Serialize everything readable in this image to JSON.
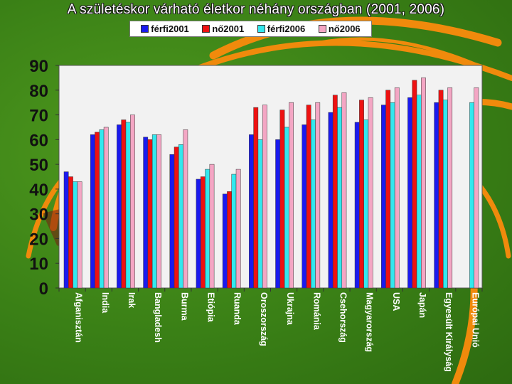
{
  "chart_data": {
    "type": "bar",
    "title": "A születéskor várható életkor néhány országban (2001, 2006)",
    "xlabel": "",
    "ylabel": "",
    "ylim": [
      0,
      90
    ],
    "yticks": [
      0,
      10,
      20,
      30,
      40,
      50,
      60,
      70,
      80,
      90
    ],
    "grid": false,
    "legend": "top",
    "categories": [
      "Afganisztán",
      "India",
      "Irak",
      "Bangladesh",
      "Burma",
      "Etiópia",
      "Ruanda",
      "Oroszország",
      "Ukrajna",
      "Románia",
      "Csehország",
      "Magyarország",
      "USA",
      "Japán",
      "Egyesült Királyság",
      "Európai Unió"
    ],
    "series": [
      {
        "name": "férfi2001",
        "color": "#1a1aee",
        "values": [
          47,
          62,
          66,
          61,
          54,
          44,
          38,
          62,
          60,
          66,
          71,
          67,
          74,
          77,
          75,
          null
        ]
      },
      {
        "name": "nő2001",
        "color": "#ee1111",
        "values": [
          45,
          63,
          68,
          60,
          57,
          45,
          39,
          73,
          72,
          74,
          78,
          76,
          80,
          84,
          80,
          null
        ]
      },
      {
        "name": "férfi2006",
        "color": "#33e8ee",
        "values": [
          43,
          64,
          67,
          62,
          58,
          48,
          46,
          60,
          65,
          68,
          73,
          68,
          75,
          78,
          76,
          75
        ]
      },
      {
        "name": "nő2006",
        "color": "#f4a6c4",
        "values": [
          43,
          65,
          70,
          62,
          64,
          50,
          48,
          74,
          75,
          75,
          79,
          77,
          81,
          85,
          81,
          81
        ]
      }
    ]
  }
}
